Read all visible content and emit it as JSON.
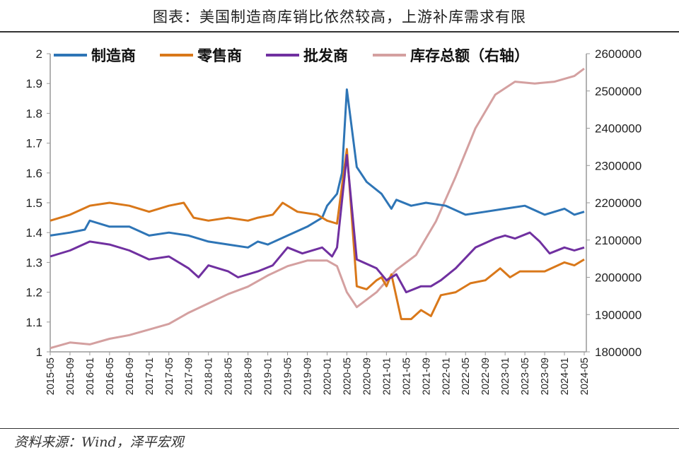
{
  "title": "图表：美国制造商库销比依然较高，上游补库需求有限",
  "source": "资料来源：Wind，泽平宏观",
  "chart_data": {
    "type": "line",
    "title": "图表：美国制造商库销比依然较高，上游补库需求有限",
    "x_ticks": [
      "2015-05",
      "2015-09",
      "2016-01",
      "2016-05",
      "2016-09",
      "2017-01",
      "2017-05",
      "2017-09",
      "2018-01",
      "2018-05",
      "2018-09",
      "2019-01",
      "2019-05",
      "2019-09",
      "2020-01",
      "2020-05",
      "2020-09",
      "2021-01",
      "2021-05",
      "2021-09",
      "2022-01",
      "2022-05",
      "2022-09",
      "2023-01",
      "2023-05",
      "2023-09",
      "2024-01",
      "2024-05"
    ],
    "y_left": {
      "range": [
        1,
        2
      ],
      "ticks": [
        "1",
        "1.1",
        "1.2",
        "1.3",
        "1.4",
        "1.5",
        "1.6",
        "1.7",
        "1.8",
        "1.9",
        "2"
      ]
    },
    "y_right": {
      "range": [
        1800000,
        2600000
      ],
      "ticks": [
        "1800000",
        "1900000",
        "2000000",
        "2100000",
        "2200000",
        "2300000",
        "2400000",
        "2500000",
        "2600000"
      ]
    },
    "legend_placement": "top",
    "grid": false,
    "series": [
      {
        "name": "制造商",
        "axis": "left",
        "color": "#2E75B6",
        "points": [
          [
            "2015-05",
            1.39
          ],
          [
            "2015-09",
            1.4
          ],
          [
            "2015-12",
            1.41
          ],
          [
            "2016-01",
            1.44
          ],
          [
            "2016-05",
            1.42
          ],
          [
            "2016-09",
            1.42
          ],
          [
            "2017-01",
            1.39
          ],
          [
            "2017-05",
            1.4
          ],
          [
            "2017-09",
            1.39
          ],
          [
            "2018-01",
            1.37
          ],
          [
            "2018-05",
            1.36
          ],
          [
            "2018-09",
            1.35
          ],
          [
            "2018-11",
            1.37
          ],
          [
            "2019-01",
            1.36
          ],
          [
            "2019-05",
            1.39
          ],
          [
            "2019-09",
            1.42
          ],
          [
            "2019-12",
            1.45
          ],
          [
            "2020-01",
            1.49
          ],
          [
            "2020-03",
            1.53
          ],
          [
            "2020-04",
            1.6
          ],
          [
            "2020-05",
            1.88
          ],
          [
            "2020-07",
            1.62
          ],
          [
            "2020-09",
            1.57
          ],
          [
            "2020-12",
            1.53
          ],
          [
            "2021-02",
            1.48
          ],
          [
            "2021-03",
            1.51
          ],
          [
            "2021-06",
            1.49
          ],
          [
            "2021-09",
            1.5
          ],
          [
            "2022-01",
            1.49
          ],
          [
            "2022-05",
            1.46
          ],
          [
            "2022-09",
            1.47
          ],
          [
            "2023-01",
            1.48
          ],
          [
            "2023-05",
            1.49
          ],
          [
            "2023-09",
            1.46
          ],
          [
            "2024-01",
            1.48
          ],
          [
            "2024-03",
            1.46
          ],
          [
            "2024-05",
            1.47
          ]
        ]
      },
      {
        "name": "零售商",
        "axis": "left",
        "color": "#D9781A",
        "points": [
          [
            "2015-05",
            1.44
          ],
          [
            "2015-09",
            1.46
          ],
          [
            "2016-01",
            1.49
          ],
          [
            "2016-05",
            1.5
          ],
          [
            "2016-09",
            1.49
          ],
          [
            "2017-01",
            1.47
          ],
          [
            "2017-05",
            1.49
          ],
          [
            "2017-08",
            1.5
          ],
          [
            "2017-10",
            1.45
          ],
          [
            "2018-01",
            1.44
          ],
          [
            "2018-05",
            1.45
          ],
          [
            "2018-09",
            1.44
          ],
          [
            "2018-11",
            1.45
          ],
          [
            "2019-02",
            1.46
          ],
          [
            "2019-04",
            1.5
          ],
          [
            "2019-07",
            1.47
          ],
          [
            "2019-11",
            1.46
          ],
          [
            "2020-01",
            1.44
          ],
          [
            "2020-03",
            1.43
          ],
          [
            "2020-05",
            1.68
          ],
          [
            "2020-07",
            1.22
          ],
          [
            "2020-09",
            1.21
          ],
          [
            "2020-11",
            1.24
          ],
          [
            "2020-12",
            1.25
          ],
          [
            "2021-01",
            1.22
          ],
          [
            "2021-02",
            1.26
          ],
          [
            "2021-04",
            1.11
          ],
          [
            "2021-06",
            1.11
          ],
          [
            "2021-08",
            1.14
          ],
          [
            "2021-10",
            1.12
          ],
          [
            "2021-12",
            1.19
          ],
          [
            "2022-03",
            1.2
          ],
          [
            "2022-06",
            1.23
          ],
          [
            "2022-09",
            1.24
          ],
          [
            "2022-12",
            1.28
          ],
          [
            "2023-02",
            1.25
          ],
          [
            "2023-04",
            1.27
          ],
          [
            "2023-09",
            1.27
          ],
          [
            "2024-01",
            1.3
          ],
          [
            "2024-03",
            1.29
          ],
          [
            "2024-05",
            1.31
          ]
        ]
      },
      {
        "name": "批发商",
        "axis": "left",
        "color": "#7030A0",
        "points": [
          [
            "2015-05",
            1.32
          ],
          [
            "2015-09",
            1.34
          ],
          [
            "2016-01",
            1.37
          ],
          [
            "2016-05",
            1.36
          ],
          [
            "2016-09",
            1.34
          ],
          [
            "2017-01",
            1.31
          ],
          [
            "2017-05",
            1.32
          ],
          [
            "2017-09",
            1.28
          ],
          [
            "2017-11",
            1.25
          ],
          [
            "2018-01",
            1.29
          ],
          [
            "2018-05",
            1.27
          ],
          [
            "2018-07",
            1.25
          ],
          [
            "2018-11",
            1.27
          ],
          [
            "2019-02",
            1.29
          ],
          [
            "2019-05",
            1.35
          ],
          [
            "2019-08",
            1.33
          ],
          [
            "2019-12",
            1.35
          ],
          [
            "2020-02",
            1.32
          ],
          [
            "2020-03",
            1.35
          ],
          [
            "2020-05",
            1.66
          ],
          [
            "2020-07",
            1.31
          ],
          [
            "2020-11",
            1.28
          ],
          [
            "2021-01",
            1.24
          ],
          [
            "2021-03",
            1.26
          ],
          [
            "2021-05",
            1.2
          ],
          [
            "2021-08",
            1.22
          ],
          [
            "2021-10",
            1.22
          ],
          [
            "2021-12",
            1.24
          ],
          [
            "2022-03",
            1.28
          ],
          [
            "2022-07",
            1.35
          ],
          [
            "2022-11",
            1.38
          ],
          [
            "2023-01",
            1.39
          ],
          [
            "2023-03",
            1.38
          ],
          [
            "2023-06",
            1.4
          ],
          [
            "2023-08",
            1.37
          ],
          [
            "2023-10",
            1.33
          ],
          [
            "2024-01",
            1.35
          ],
          [
            "2024-03",
            1.34
          ],
          [
            "2024-05",
            1.35
          ]
        ]
      },
      {
        "name": "库存总额（右轴）",
        "axis": "right",
        "color": "#D4A0A0",
        "points": [
          [
            "2015-05",
            1810000
          ],
          [
            "2015-09",
            1825000
          ],
          [
            "2016-01",
            1820000
          ],
          [
            "2016-05",
            1835000
          ],
          [
            "2016-09",
            1845000
          ],
          [
            "2017-01",
            1860000
          ],
          [
            "2017-05",
            1875000
          ],
          [
            "2017-09",
            1905000
          ],
          [
            "2018-01",
            1930000
          ],
          [
            "2018-05",
            1955000
          ],
          [
            "2018-09",
            1975000
          ],
          [
            "2019-01",
            2005000
          ],
          [
            "2019-05",
            2030000
          ],
          [
            "2019-09",
            2045000
          ],
          [
            "2020-01",
            2045000
          ],
          [
            "2020-03",
            2030000
          ],
          [
            "2020-05",
            1960000
          ],
          [
            "2020-07",
            1920000
          ],
          [
            "2020-11",
            1960000
          ],
          [
            "2021-03",
            2020000
          ],
          [
            "2021-07",
            2060000
          ],
          [
            "2021-11",
            2150000
          ],
          [
            "2022-03",
            2270000
          ],
          [
            "2022-07",
            2400000
          ],
          [
            "2022-11",
            2490000
          ],
          [
            "2023-03",
            2525000
          ],
          [
            "2023-07",
            2520000
          ],
          [
            "2023-11",
            2525000
          ],
          [
            "2024-03",
            2540000
          ],
          [
            "2024-05",
            2560000
          ]
        ]
      }
    ]
  }
}
